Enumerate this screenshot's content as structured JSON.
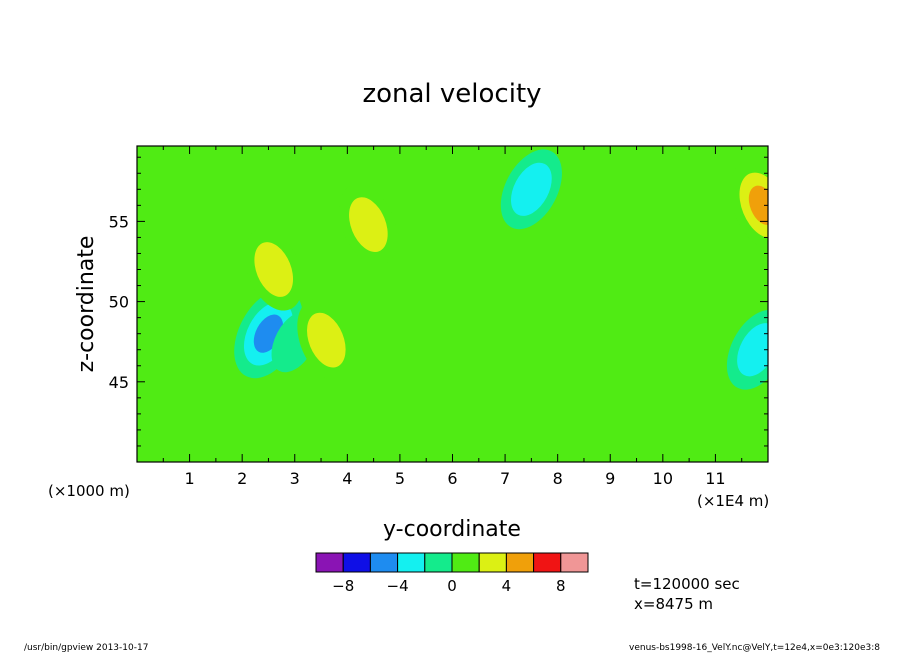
{
  "chart_data": {
    "type": "heatmap",
    "title": "zonal velocity",
    "xlabel": "y-coordinate",
    "ylabel": "z-coordinate",
    "x_multiplier_note": "(×1E4 m)",
    "y_multiplier_note": "(×1000 m)",
    "xlim": [
      0,
      12
    ],
    "ylim": [
      40,
      59.7
    ],
    "x_ticks": [
      "1",
      "2",
      "3",
      "4",
      "5",
      "6",
      "7",
      "8",
      "9",
      "10",
      "11"
    ],
    "y_ticks": [
      "45",
      "50",
      "55"
    ],
    "colorbar": {
      "levels": [
        -10,
        -8,
        -6,
        -4,
        -2,
        0,
        2,
        4,
        6,
        8,
        10
      ],
      "colors": [
        "#8a14b4",
        "#0f0fe6",
        "#1e8cf0",
        "#14f0f0",
        "#14eb8c",
        "#50eb14",
        "#dcf014",
        "#f0a00a",
        "#f01414",
        "#f09696"
      ],
      "tick_labels": [
        "−8",
        "−4",
        "0",
        "4",
        "8"
      ],
      "tick_values": [
        -8,
        -4,
        0,
        4,
        8
      ]
    },
    "background_level": "0 to 2",
    "features": [
      {
        "y": 2.5,
        "z": 48.0,
        "value": -6
      },
      {
        "y": 3.0,
        "z": 47.5,
        "value": -3
      },
      {
        "y": 2.6,
        "z": 52.0,
        "value": 5
      },
      {
        "y": 3.6,
        "z": 47.6,
        "value": 5
      },
      {
        "y": 4.4,
        "z": 54.8,
        "value": 5
      },
      {
        "y": 7.5,
        "z": 57.0,
        "value": -5
      },
      {
        "y": 11.9,
        "z": 56.0,
        "value": 6
      },
      {
        "y": 11.8,
        "z": 47.0,
        "value": -5
      }
    ]
  },
  "info": {
    "time": "t=120000 sec",
    "position": "x=8475 m"
  },
  "footer": {
    "left": "/usr/bin/gpview   2013-10-17",
    "right": "venus-bs1998-16_VelY.nc@VelY,t=12e4,x=0e3:120e3:8"
  },
  "colors": {
    "frame": "#000000",
    "background_field": "#50eb14"
  }
}
